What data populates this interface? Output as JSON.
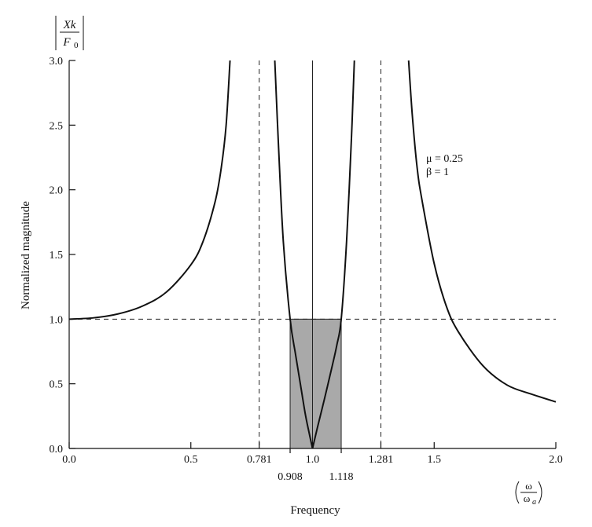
{
  "chart_data": {
    "type": "line",
    "title": "",
    "xlabel": "Frequency",
    "x_unit_num": "ω",
    "x_unit_den": "ω",
    "x_unit_den_sub": "a",
    "ylabel": "Normalized magnitude",
    "ylabel_top": {
      "num": "Xk",
      "den": "F",
      "den_sub": "0"
    },
    "xlim": [
      0.0,
      2.0
    ],
    "ylim": [
      0.0,
      3.0
    ],
    "x_ticks_main": [
      {
        "value": 0.0,
        "label": "0.0"
      },
      {
        "value": 0.5,
        "label": "0.5"
      },
      {
        "value": 0.781,
        "label": "0.781"
      },
      {
        "value": 1.0,
        "label": "1.0"
      },
      {
        "value": 1.281,
        "label": "1.281"
      },
      {
        "value": 1.5,
        "label": "1.5"
      },
      {
        "value": 2.0,
        "label": "2.0"
      }
    ],
    "x_ticks_secondary": [
      {
        "value": 0.908,
        "label": "0.908"
      },
      {
        "value": 1.118,
        "label": "1.118"
      }
    ],
    "y_ticks": [
      {
        "value": 0.0,
        "label": "0.0"
      },
      {
        "value": 0.5,
        "label": "0.5"
      },
      {
        "value": 1.0,
        "label": "1.0"
      },
      {
        "value": 1.5,
        "label": "1.5"
      },
      {
        "value": 2.0,
        "label": "2.0"
      },
      {
        "value": 2.5,
        "label": "2.5"
      },
      {
        "value": 3.0,
        "label": "3.0"
      }
    ],
    "parameters": {
      "mu": "μ = 0.25",
      "beta": "β = 1"
    },
    "series": [
      {
        "x": [
          0.0,
          0.1,
          0.2,
          0.3,
          0.4,
          0.5,
          0.55,
          0.6,
          0.625,
          0.645,
          0.661
        ],
        "y": [
          1.0,
          1.01,
          1.04,
          1.1,
          1.21,
          1.42,
          1.6,
          1.91,
          2.17,
          2.5,
          3.0
        ]
      },
      {
        "x": [
          0.845,
          0.86,
          0.88,
          0.908,
          0.93,
          0.95,
          0.97,
          0.985,
          1.0
        ],
        "y": [
          3.0,
          2.35,
          1.6,
          1.0,
          0.73,
          0.5,
          0.27,
          0.13,
          0.0
        ]
      },
      {
        "x": [
          1.0,
          1.02,
          1.05,
          1.08,
          1.1,
          1.118,
          1.14,
          1.16,
          1.172
        ],
        "y": [
          0.0,
          0.16,
          0.39,
          0.63,
          0.8,
          1.0,
          1.6,
          2.4,
          3.0
        ]
      },
      {
        "x": [
          1.395,
          1.41,
          1.43,
          1.45,
          1.5,
          1.55,
          1.6,
          1.7,
          1.8,
          1.9,
          2.0
        ],
        "y": [
          3.0,
          2.58,
          2.17,
          1.92,
          1.43,
          1.1,
          0.9,
          0.64,
          0.49,
          0.42,
          0.36
        ]
      }
    ],
    "reference_lines": {
      "horizontal_dashed": 1.0,
      "vertical_dashed": [
        0.781,
        1.281
      ],
      "vertical_solid": 1.0
    },
    "shaded_region": {
      "x": [
        0.908,
        1.118
      ],
      "y": [
        0.0,
        1.0
      ],
      "color": "#a9a9a9"
    },
    "line_color": "#111111",
    "grid": false,
    "legend": "none"
  }
}
